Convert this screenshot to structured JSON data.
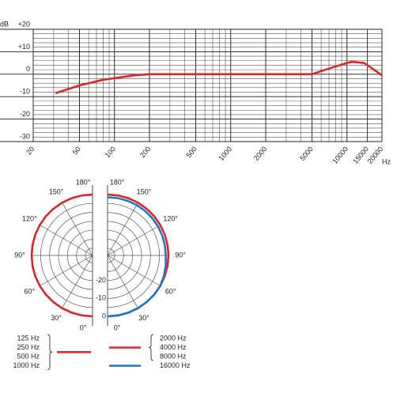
{
  "chart_data": [
    {
      "type": "line",
      "ylabel": "dB",
      "xlabel": "Hz",
      "xscale": "log",
      "xlim": [
        20,
        20000
      ],
      "xticks": [
        20,
        50,
        100,
        200,
        500,
        1000,
        2000,
        5000,
        10000,
        15000,
        20000
      ],
      "ylim": [
        -30,
        20
      ],
      "yticks": [
        {
          "value": 20,
          "label": "+20"
        },
        {
          "value": 10,
          "label": "+10"
        },
        0,
        -10,
        -20,
        -30
      ],
      "grid": true,
      "x": [
        31,
        50,
        80,
        150,
        200,
        1000,
        5000,
        7000,
        10000,
        11000,
        14000,
        16000,
        20000
      ],
      "series": [
        {
          "color": "#d9262b",
          "values": [
            -8.5,
            -5,
            -2.5,
            -0.5,
            0,
            0,
            0,
            2.5,
            5,
            5.5,
            5,
            3,
            -0.5
          ]
        }
      ]
    },
    {
      "type": "polar",
      "theta": [
        0,
        10,
        20,
        30,
        40,
        50,
        60,
        70,
        80,
        90,
        100,
        110,
        120,
        130,
        140,
        150,
        160,
        170,
        180
      ],
      "thetaticks": [
        {
          "value": 0,
          "label": "0°"
        },
        {
          "value": 30,
          "label": "30°"
        },
        {
          "value": 60,
          "label": "60°"
        },
        {
          "value": 90,
          "label": "90°"
        },
        {
          "value": 120,
          "label": "120°"
        },
        {
          "value": 150,
          "label": "150°"
        },
        {
          "value": 180,
          "label": "180°"
        }
      ],
      "rlim": [
        -34,
        0
      ],
      "rticks": [
        0,
        -10,
        -20
      ],
      "series": [
        {
          "names": [
            "125 Hz",
            "250 Hz",
            "500 Hz",
            "1000 Hz"
          ],
          "side": "left",
          "color": "#d9262b",
          "values": [
            0,
            0,
            0,
            0,
            0,
            0,
            0,
            0,
            0,
            0,
            0,
            0,
            0,
            0,
            0,
            0,
            0,
            0,
            0
          ]
        },
        {
          "names": [
            "2000 Hz",
            "4000 Hz",
            "8000 Hz"
          ],
          "side": "right",
          "color": "#d9262b",
          "values": [
            0,
            0,
            0,
            0,
            0,
            0,
            0,
            0,
            0,
            0,
            0,
            0,
            0,
            0,
            0,
            0,
            0,
            0,
            0
          ]
        },
        {
          "names": [
            "16000 Hz"
          ],
          "side": "right",
          "color": "#1f77c4",
          "values": [
            0,
            0,
            0,
            0,
            0,
            0,
            0,
            -0.5,
            -1,
            -1.5,
            -1.5,
            -1.5,
            -1.5,
            -1.5,
            -1.5,
            -1.5,
            -1.5,
            -1.5,
            -1.5
          ]
        }
      ]
    }
  ]
}
